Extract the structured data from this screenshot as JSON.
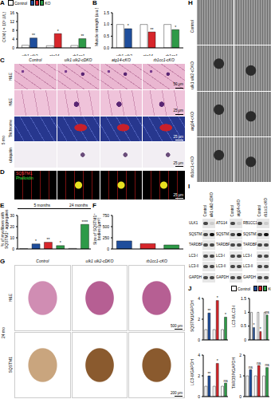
{
  "chart_data": [
    {
      "panel": "A",
      "type": "bar",
      "ylabel": "CKM (×10³ U/L)",
      "categories": [
        "ulk1 ulk2",
        "atg14",
        "rb1cc1"
      ],
      "series": [
        {
          "name": "Control",
          "color": "#ffffff",
          "values": [
            1.2,
            1.0,
            1.1
          ]
        },
        {
          "name": "KO",
          "colors": [
            "#1f4e9c",
            "#d7262b",
            "#2e9a48"
          ],
          "values": [
            4.5,
            6.5,
            4.2
          ]
        }
      ],
      "ylim": [
        0,
        16
      ],
      "yticks": [
        0,
        4,
        8,
        12,
        16
      ],
      "significance": [
        "**",
        "*",
        "**"
      ],
      "legend": "top"
    },
    {
      "panel": "B",
      "type": "bar",
      "ylabel": "Muscle strength (a.u.)",
      "categories": [
        "ulk1 ulk2",
        "atg14",
        "rb1cc1"
      ],
      "series": [
        {
          "name": "Control",
          "color": "#ffffff",
          "values": [
            1.0,
            1.0,
            1.0
          ]
        },
        {
          "name": "KO",
          "colors": [
            "#1f4e9c",
            "#d7262b",
            "#2e9a48"
          ],
          "values": [
            0.82,
            0.68,
            0.78
          ]
        }
      ],
      "ylim": [
        0,
        1.5
      ],
      "yticks": [
        {
          "value": 0,
          "label": "0.0"
        },
        0.5,
        {
          "value": 1,
          "label": "1.0"
        },
        1.5
      ],
      "significance": [
        "*",
        "**",
        "*"
      ]
    },
    {
      "panel": "E",
      "type": "bar",
      "ylabel": "% of myofibers with SQSTM1⁺ aggregates",
      "categories": [
        null,
        null,
        null,
        null,
        null,
        null
      ],
      "annotations": [
        "5 months",
        null,
        null,
        null,
        "24 months",
        null
      ],
      "values": [
        0.3,
        4.5,
        6,
        3,
        0.5,
        22
      ],
      "colors": [
        "#ffffff",
        "#1f4e9c",
        "#d7262b",
        "#2e9a48",
        "#ffffff",
        "#2e9a48"
      ],
      "ylim": [
        0,
        30
      ],
      "yticks": [
        0,
        10,
        20,
        30
      ],
      "significance": [
        null,
        "*",
        "**",
        "*",
        null,
        "****"
      ]
    },
    {
      "panel": "F",
      "type": "bar",
      "ylabel": "Size of SQSTM1⁺ bodies (μm²)",
      "categories": [
        null,
        null,
        null
      ],
      "values": [
        180,
        120,
        90
      ],
      "colors": [
        "#1f4e9c",
        "#d7262b",
        "#2e9a48"
      ],
      "ylim": [
        0,
        750
      ],
      "yticks": [
        0,
        250,
        500,
        750
      ]
    },
    {
      "panel": "J",
      "type": "bar",
      "ylabel": "SQSTM1/GAPDH",
      "categories": [
        null,
        null,
        null
      ],
      "series": [
        {
          "name": "Control",
          "color": "#ffffff",
          "values": [
            1,
            1,
            1
          ]
        },
        {
          "name": "KO",
          "colors": [
            "#1f4e9c",
            "#d7262b",
            "#2e9a48"
          ],
          "values": [
            2.6,
            3.8,
            2.2
          ]
        }
      ],
      "ylim": [
        0,
        4
      ],
      "yticks": [
        0,
        2,
        4
      ],
      "significance": [
        "**",
        "*",
        "*"
      ],
      "tick_labels": "y"
    },
    {
      "type": "bar",
      "ylabel": "LC3-II/LC3-I",
      "categories": [
        null,
        null,
        null
      ],
      "series": [
        {
          "name": "Control",
          "color": "#ffffff",
          "values": [
            1,
            1,
            1
          ]
        },
        {
          "name": "KO",
          "colors": [
            "#1f4e9c",
            "#d7262b",
            "#2e9a48"
          ],
          "values": [
            0.45,
            0.3,
            0.9
          ]
        }
      ],
      "ylim": [
        0,
        1.5
      ],
      "yticks": [
        0,
        0.5,
        1,
        1.5
      ],
      "significance": [
        "*",
        "*",
        "ns"
      ],
      "tick_labels": "y",
      "legend": "top"
    },
    {
      "type": "bar",
      "ylabel": "LC3-II/GAPDH",
      "categories": [
        null,
        null,
        null
      ],
      "series": [
        {
          "name": "Control",
          "color": "#ffffff",
          "values": [
            1,
            1,
            1
          ]
        },
        {
          "name": "KO",
          "colors": [
            "#1f4e9c",
            "#d7262b",
            "#2e9a48"
          ],
          "values": [
            2.0,
            3.2,
            1.3
          ]
        }
      ],
      "ylim": [
        0,
        4
      ],
      "yticks": [
        0,
        2,
        4
      ],
      "significance": [
        "**",
        "*",
        "ns"
      ],
      "tick_labels": "y"
    },
    {
      "type": "bar",
      "ylabel": "TARDBP/GAPDH",
      "categories": [
        null,
        null,
        null
      ],
      "series": [
        {
          "name": "Control",
          "color": "#ffffff",
          "values": [
            1,
            1,
            1
          ]
        },
        {
          "name": "KO",
          "colors": [
            "#1f4e9c",
            "#d7262b",
            "#2e9a48"
          ],
          "values": [
            1.3,
            1.5,
            1.4
          ]
        }
      ],
      "ylim": [
        0,
        2
      ],
      "yticks": [
        0,
        1,
        2
      ],
      "significance": [
        "ns",
        "ns",
        "ns"
      ],
      "tick_labels": "y"
    }
  ],
  "images": {
    "C": {
      "panel": "C",
      "age": "5 mo",
      "columns": [
        "Control",
        "ulk1 ulk2-cDKO",
        "atg14-cKO",
        "rb1cc1-cKO"
      ],
      "rows": [
        "H&E",
        "H&E",
        "Trichrome",
        "ubiquitin"
      ],
      "scale_bars": [
        "50 μm",
        "25 μm",
        "25 μm",
        "25 μm"
      ]
    },
    "D": {
      "panel": "D",
      "channels": [
        "SQSTM1",
        "Phalloidin"
      ],
      "scale_bar": "25 μm"
    },
    "G": {
      "panel": "G",
      "age": "24 mo",
      "columns": [
        "Control",
        "ulk1 ulk2-cDKO",
        "rb1cc1-cKO"
      ],
      "rows": [
        "H&E",
        "SQSTM1"
      ],
      "scale_bars": [
        "500 μm",
        "200 μm"
      ]
    },
    "H": {
      "panel": "H",
      "rows": [
        "Control",
        "ulk1 ulk2-cDKO",
        "atg14-cKO",
        "rb1cc1-cKO"
      ]
    },
    "I": {
      "panel": "I",
      "blots": [
        {
          "columns": [
            "Control",
            "ulk1 ulk2-cDKO"
          ],
          "rows": [
            "ULK1",
            "SQSTM1",
            "TARDBP",
            "LC3-I",
            "LC3-II",
            "GAPDH"
          ]
        },
        {
          "columns": [
            "Control",
            "atg14-cKO"
          ],
          "rows": [
            "ATG14",
            "SQSTM1",
            "TARDBP",
            "LC3-I",
            "LC3-II",
            "GAPDH"
          ]
        },
        {
          "columns": [
            "Control",
            "rb1cc1-cKO"
          ],
          "rows": [
            "RB1CC1",
            "SQSTM1",
            "TARDBP",
            "LC3-I",
            "LC3-II",
            "GAPDH"
          ]
        }
      ]
    }
  }
}
